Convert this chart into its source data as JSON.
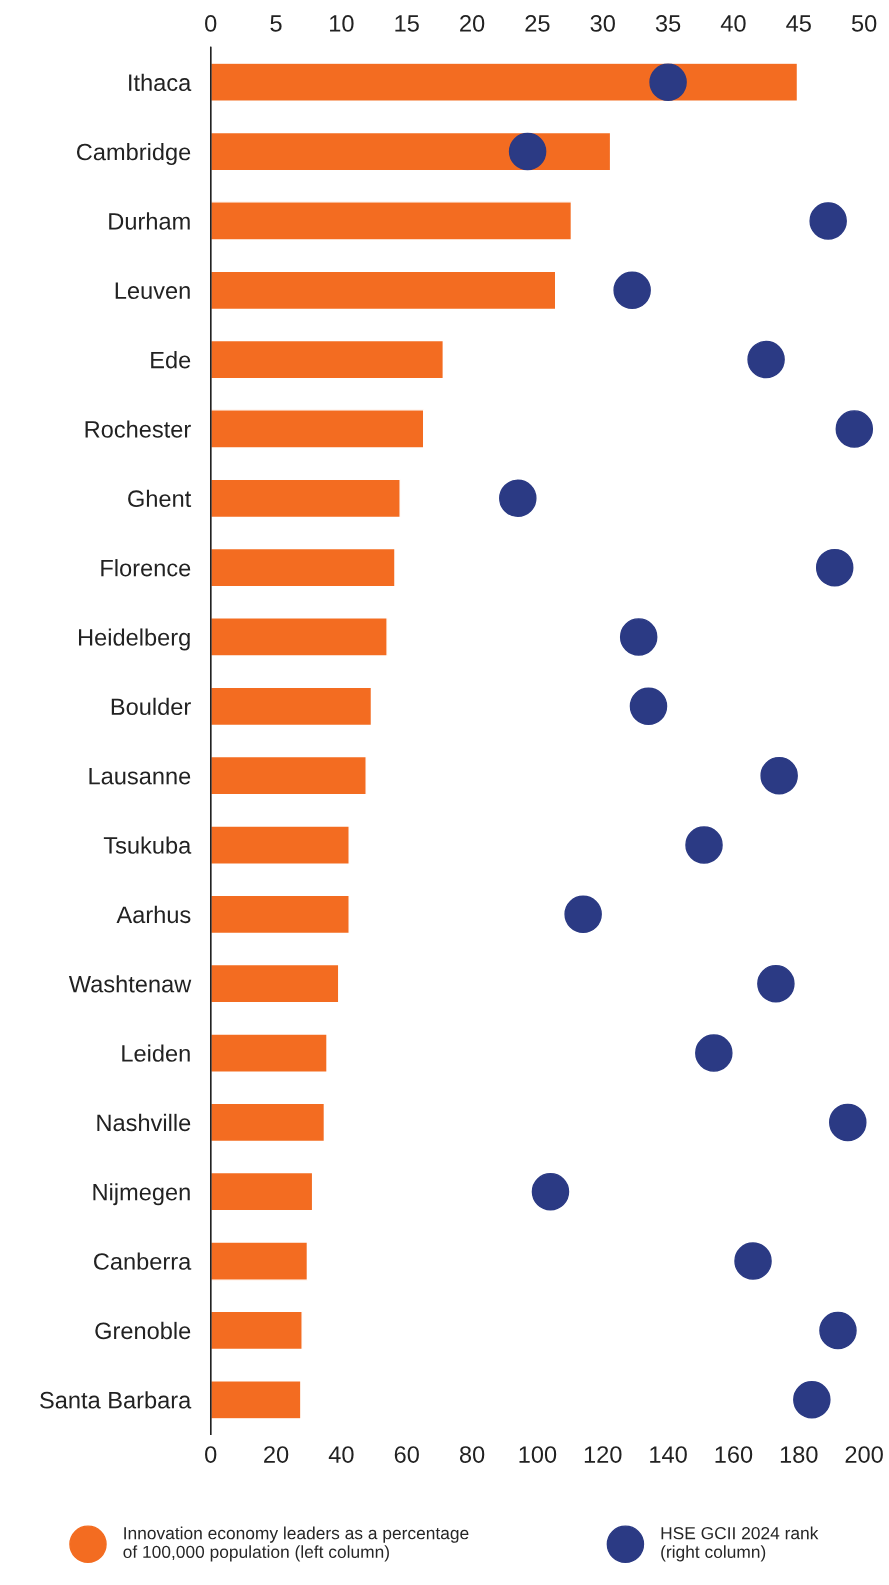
{
  "chart_data": {
    "type": "bar",
    "orientation": "horizontal",
    "categories": [
      "Ithaca",
      "Cambridge",
      "Durham",
      "Leuven",
      "Ede",
      "Rochester",
      "Ghent",
      "Florence",
      "Heidelberg",
      "Boulder",
      "Lausanne",
      "Tsukuba",
      "Aarhus",
      "Washtenaw",
      "Leiden",
      "Nashville",
      "Nijmegen",
      "Canberra",
      "Grenoble",
      "Santa Barbara"
    ],
    "series": [
      {
        "name": "Innovation economy leaders as a percentage of 100,000 population (left column)",
        "axis": "x2",
        "color": "#f36c21",
        "values": [
          44.9,
          30.6,
          27.6,
          26.4,
          17.8,
          16.3,
          14.5,
          14.1,
          13.5,
          12.3,
          11.9,
          10.6,
          10.6,
          9.8,
          8.9,
          8.7,
          7.8,
          7.4,
          7.0,
          6.9
        ]
      },
      {
        "name": "HSE GCII 2024 rank (right column)",
        "type": "scatter",
        "color": "#2b3a84",
        "values": [
          140,
          97,
          189,
          129,
          170,
          197,
          94,
          191,
          131,
          134,
          174,
          151,
          114,
          173,
          154,
          195,
          104,
          166,
          192,
          184
        ]
      }
    ],
    "x2lim": [
      0,
      50
    ],
    "x2ticks": [
      0,
      5,
      10,
      15,
      20,
      25,
      30,
      35,
      40,
      45,
      50
    ],
    "xlim": [
      0,
      200
    ],
    "xticks": [
      0,
      20,
      40,
      60,
      80,
      100,
      120,
      140,
      160,
      180,
      200
    ],
    "marker": "circle",
    "grid": false,
    "legend": "bottom"
  }
}
